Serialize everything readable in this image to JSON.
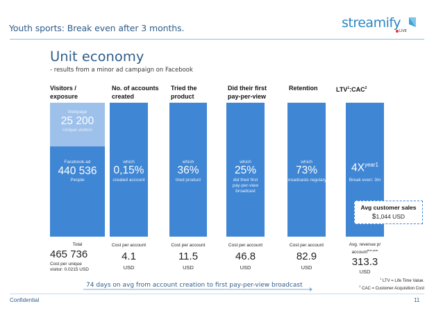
{
  "header": {
    "title": "Youth sports: Break even after 3 months.",
    "logo_text": "streamify",
    "logo_badge": "LIVE",
    "brand_color": "#2b86c5"
  },
  "section": {
    "title": "Unit economy",
    "subtitle": "- results from a minor ad campaign on Facebook"
  },
  "columns": [
    {
      "header_line1": "Visitors /",
      "header_line2": "exposure",
      "webpage_label": "Webpage",
      "webpage_value": "25 200",
      "webpage_unit": "Unique visitors",
      "ad_label": "Facebook-ad",
      "ad_value": "440 536",
      "ad_unit": "People",
      "total_label": "Total",
      "total_value": "465 736",
      "total_note_line1": "Cost per unique",
      "total_note_line2": "visitor: 0.0215 USD"
    },
    {
      "header_line1": "No. of accounts",
      "header_line2": "created",
      "which": "which",
      "value": "0,15%",
      "desc": "created account",
      "cost_label": "Cost per account",
      "cost_value": "4.1",
      "cost_unit": "USD"
    },
    {
      "header_line1": "Tried the",
      "header_line2": "product",
      "which": "which",
      "value": "36%",
      "desc": "tried product",
      "cost_label": "Cost per account",
      "cost_value": "11.5",
      "cost_unit": "USD"
    },
    {
      "header_line1": "Did their first",
      "header_line2": "pay-per-view",
      "which": "which",
      "value": "25%",
      "desc_line1": "did their first",
      "desc_line2": "pay-per-view",
      "desc_line3": "broadcast",
      "cost_label": "Cost per account",
      "cost_value": "46.8",
      "cost_unit": "USD"
    },
    {
      "header_line1": "Retention",
      "which": "which",
      "value": "73%",
      "desc": "broadcasts regulary",
      "cost_label": "Cost per account",
      "cost_value": "82.9",
      "cost_unit": "USD"
    },
    {
      "header_line1": "LTV",
      "header_sup1": "1",
      "header_mid": ":CAC",
      "header_sup2": "2",
      "value": "4X",
      "value_sup": "year1",
      "desc": "Break even: 3m",
      "cost_label_line1": "Avg. revenue p/",
      "cost_label_line2": "account",
      "cost_label_sup": "first year",
      "cost_value": "313.3",
      "cost_unit": "USD"
    }
  ],
  "callout": {
    "title": "Avg customer sales",
    "value_prefix": "$",
    "value": "1,044 USD"
  },
  "timeline": {
    "text": "74 days on avg from account creation to first pay-per-view broadcast"
  },
  "footnotes": {
    "ltv": "LTV = Life Time Value.",
    "ltv_num": "1",
    "cac": "CAC = Customer Acquisition Cost",
    "cac_num": "2"
  },
  "footer": {
    "confidential": "Confidential",
    "page_number": "11"
  },
  "colors": {
    "bar": "#3f86d4",
    "bar_light": "#9dc1ea",
    "title": "#2f5d8a"
  }
}
